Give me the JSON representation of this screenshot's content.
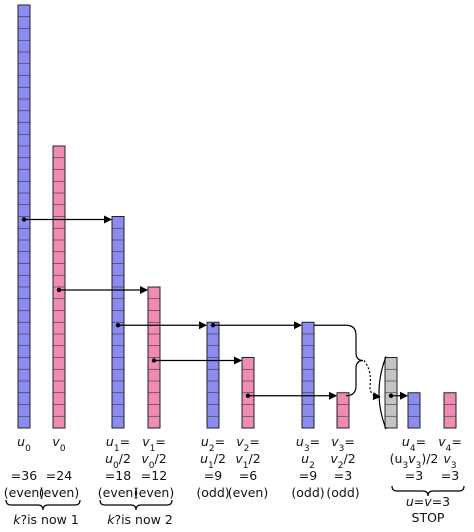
{
  "columns": [
    {
      "color": "#8c8cf0",
      "cells": 36,
      "name": [
        [
          "u",
          "i"
        ],
        [
          "0",
          "sub"
        ]
      ],
      "value": "=36",
      "parity": "(even)"
    },
    {
      "color": "#f08cb4",
      "cells": 24,
      "name": [
        [
          "v",
          "i"
        ],
        [
          "0",
          "sub"
        ]
      ],
      "value": "=24",
      "parity": "(even)"
    },
    {
      "color": "#8c8cf0",
      "cells": 18,
      "name": [
        [
          "u",
          "i"
        ],
        [
          "1",
          "sub"
        ],
        [
          "=",
          "n"
        ]
      ],
      "expr": [
        [
          "u",
          "i"
        ],
        [
          "0",
          "sub"
        ],
        [
          "/2",
          "n"
        ]
      ],
      "value": "=18",
      "parity": "(even)"
    },
    {
      "color": "#f08cb4",
      "cells": 12,
      "name": [
        [
          "v",
          "i"
        ],
        [
          "1",
          "sub"
        ],
        [
          "=",
          "n"
        ]
      ],
      "expr": [
        [
          "v",
          "i"
        ],
        [
          "0",
          "sub"
        ],
        [
          "/2",
          "n"
        ]
      ],
      "value": "=12",
      "parity": "(even)"
    },
    {
      "color": "#8c8cf0",
      "cells": 9,
      "name": [
        [
          "u",
          "i"
        ],
        [
          "2",
          "sub"
        ],
        [
          "=",
          "n"
        ]
      ],
      "expr": [
        [
          "u",
          "i"
        ],
        [
          "1",
          "sub"
        ],
        [
          "/2",
          "n"
        ]
      ],
      "value": "=9",
      "parity": "(odd)"
    },
    {
      "color": "#f08cb4",
      "cells": 6,
      "name": [
        [
          "v",
          "i"
        ],
        [
          "2",
          "sub"
        ],
        [
          "=",
          "n"
        ]
      ],
      "expr": [
        [
          "v",
          "i"
        ],
        [
          "1",
          "sub"
        ],
        [
          "/2",
          "n"
        ]
      ],
      "value": "=6",
      "parity": "(even)"
    },
    {
      "color": "#8c8cf0",
      "cells": 9,
      "name": [
        [
          "u",
          "i"
        ],
        [
          "3",
          "sub"
        ],
        [
          "=",
          "n"
        ]
      ],
      "expr": [
        [
          "u",
          "i"
        ],
        [
          "2",
          "sub"
        ]
      ],
      "value": "=9",
      "parity": "(odd)"
    },
    {
      "color": "#f08cb4",
      "cells": 3,
      "name": [
        [
          "v",
          "i"
        ],
        [
          "3",
          "sub"
        ],
        [
          "=",
          "n"
        ]
      ],
      "expr": [
        [
          "v",
          "i"
        ],
        [
          "2",
          "sub"
        ],
        [
          "/2",
          "n"
        ]
      ],
      "value": "=3",
      "parity": "(odd)"
    },
    {
      "color": "#c4c4c4",
      "cells": 6
    },
    {
      "color": "#8c8cf0",
      "cells": 3,
      "name": [
        [
          "u",
          "i"
        ],
        [
          "4",
          "sub"
        ],
        [
          "=",
          "n"
        ]
      ],
      "expr": [
        [
          "(u",
          "n"
        ],
        [
          "3",
          "sub"
        ],
        [
          "v",
          "i"
        ],
        [
          "3",
          "sub"
        ],
        [
          ")/2",
          "n"
        ]
      ],
      "value": "=3"
    },
    {
      "color": "#f08cb4",
      "cells": 3,
      "name": [
        [
          "v",
          "i"
        ],
        [
          "4",
          "sub"
        ],
        [
          "=",
          "n"
        ]
      ],
      "expr": [
        [
          "v",
          "i"
        ],
        [
          "3",
          "sub"
        ]
      ],
      "value": "=3"
    }
  ],
  "notes": [
    [
      [
        "k",
        "i"
      ],
      [
        "?is now 1",
        "n"
      ]
    ],
    [
      [
        "k",
        "i"
      ],
      [
        "?is now 2",
        "n"
      ]
    ],
    [
      [
        "u",
        "i"
      ],
      [
        "=",
        "n"
      ],
      [
        "v",
        "i"
      ],
      [
        "=3",
        "n"
      ]
    ],
    [
      [
        "STOP",
        "n"
      ]
    ]
  ]
}
